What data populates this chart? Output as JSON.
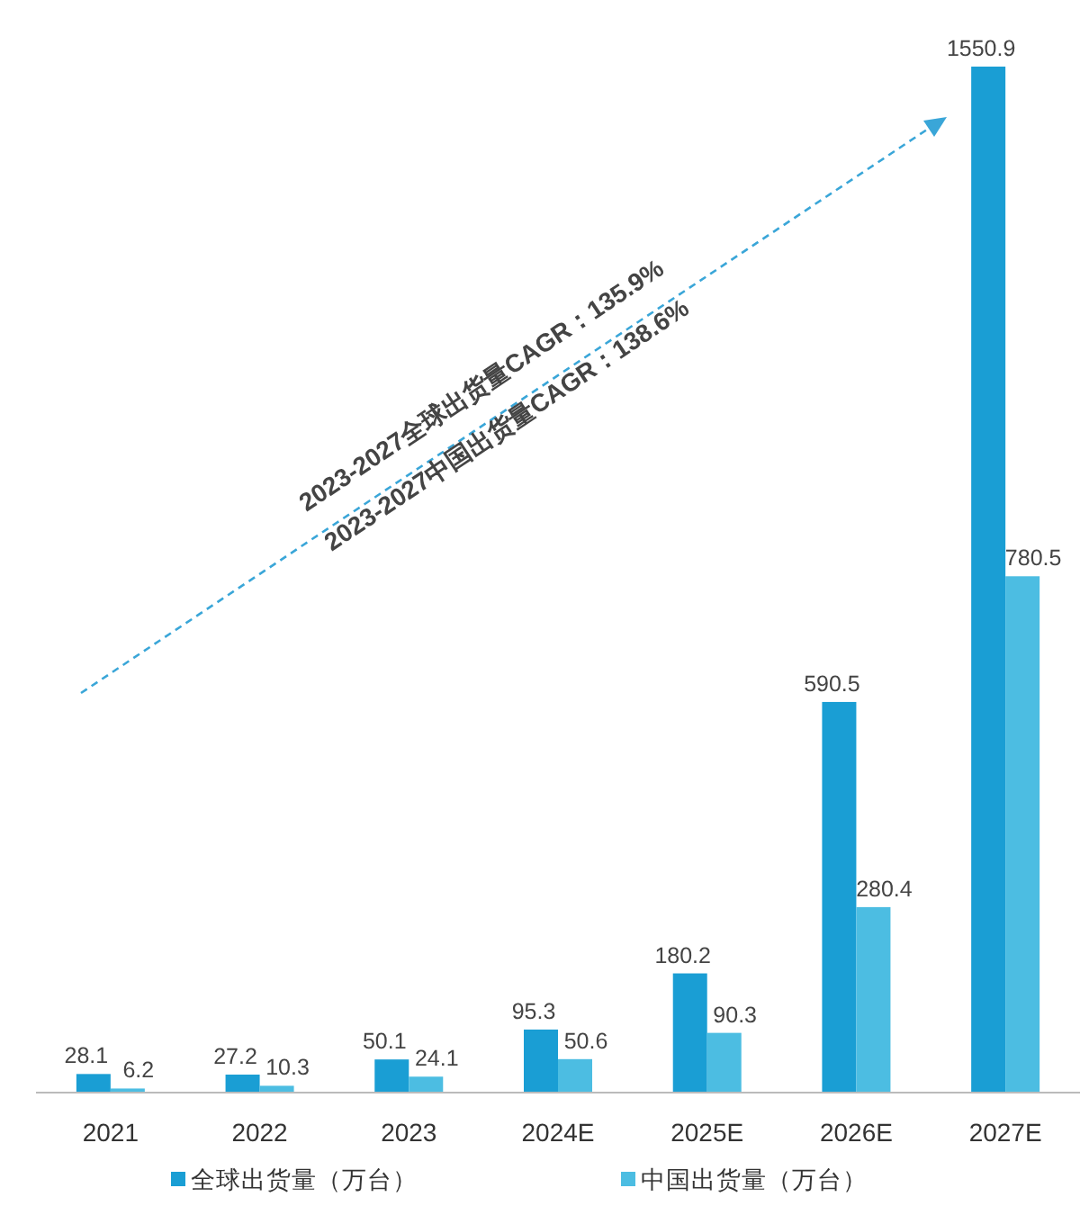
{
  "chart_data": {
    "type": "bar",
    "categories": [
      "2021",
      "2022",
      "2023",
      "2024E",
      "2025E",
      "2026E",
      "2027E"
    ],
    "series": [
      {
        "name": "全球出货量（万台）",
        "color": "#1a9ed4",
        "values": [
          28.1,
          27.2,
          50.1,
          95.3,
          180.2,
          590.5,
          1550.9
        ]
      },
      {
        "name": "中国出货量（万台）",
        "color": "#4cbde2",
        "values": [
          6.2,
          10.3,
          24.1,
          50.6,
          90.3,
          280.4,
          780.5
        ]
      }
    ],
    "data_labels": true,
    "legend": "bottom",
    "grid": false,
    "annotations": [
      "2023-2027全球出货量CAGR：135.9%",
      "2023-2027中国出货量CAGR：138.6%"
    ]
  }
}
